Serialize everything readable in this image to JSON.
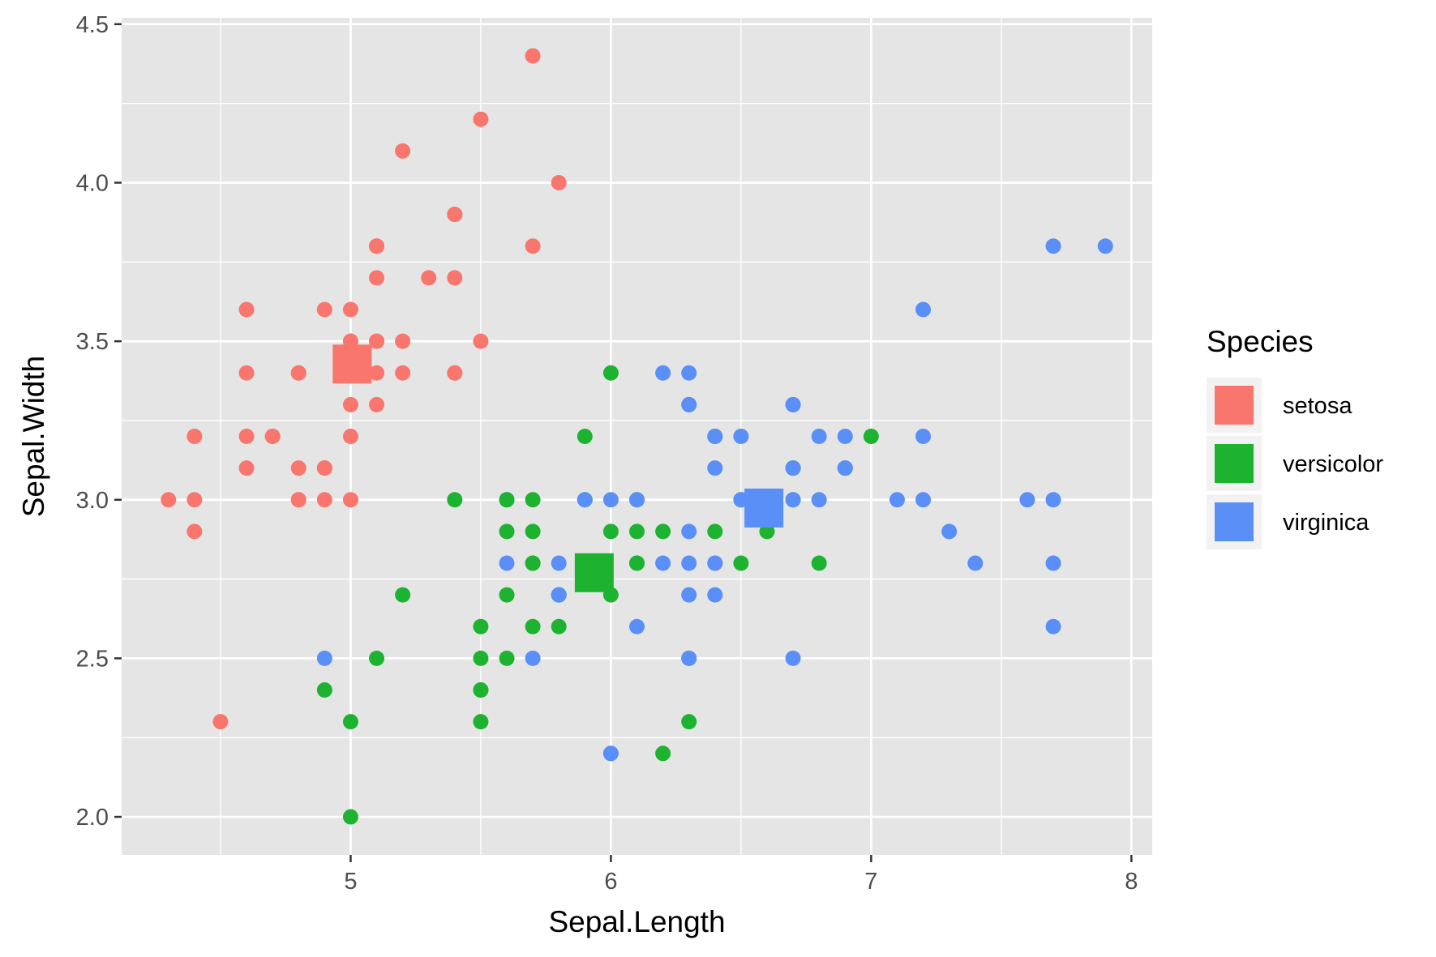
{
  "chart_data": {
    "type": "scatter",
    "xlabel": "Sepal.Length",
    "ylabel": "Sepal.Width",
    "xlim": [
      4.12,
      8.08
    ],
    "ylim": [
      1.88,
      4.52
    ],
    "x_ticks": [
      5,
      6,
      7,
      8
    ],
    "x_tick_labels": [
      "5",
      "6",
      "7",
      "8"
    ],
    "y_ticks": [
      2.0,
      2.5,
      3.0,
      3.5,
      4.0,
      4.5
    ],
    "y_tick_labels": [
      "2.0",
      "2.5",
      "3.0",
      "3.5",
      "4.0",
      "4.5"
    ],
    "grid": true,
    "panel_background": "#e5e5e5",
    "legend": {
      "title": "Species",
      "position": "right",
      "entries": [
        "setosa",
        "versicolor",
        "virginica"
      ]
    },
    "series": [
      {
        "name": "setosa",
        "color": "#f8766d",
        "centroid": [
          5.006,
          3.428
        ],
        "points": [
          [
            5.1,
            3.5
          ],
          [
            4.9,
            3.0
          ],
          [
            4.7,
            3.2
          ],
          [
            4.6,
            3.1
          ],
          [
            5.0,
            3.6
          ],
          [
            5.4,
            3.9
          ],
          [
            4.6,
            3.4
          ],
          [
            5.0,
            3.4
          ],
          [
            4.4,
            2.9
          ],
          [
            4.9,
            3.1
          ],
          [
            5.4,
            3.7
          ],
          [
            4.8,
            3.4
          ],
          [
            4.8,
            3.0
          ],
          [
            4.3,
            3.0
          ],
          [
            5.8,
            4.0
          ],
          [
            5.7,
            4.4
          ],
          [
            5.4,
            3.9
          ],
          [
            5.1,
            3.5
          ],
          [
            5.7,
            3.8
          ],
          [
            5.1,
            3.8
          ],
          [
            5.4,
            3.4
          ],
          [
            5.1,
            3.7
          ],
          [
            4.6,
            3.6
          ],
          [
            5.1,
            3.3
          ],
          [
            4.8,
            3.4
          ],
          [
            5.0,
            3.0
          ],
          [
            5.0,
            3.4
          ],
          [
            5.2,
            3.5
          ],
          [
            5.2,
            3.4
          ],
          [
            4.7,
            3.2
          ],
          [
            4.8,
            3.1
          ],
          [
            5.4,
            3.4
          ],
          [
            5.2,
            4.1
          ],
          [
            5.5,
            4.2
          ],
          [
            4.9,
            3.1
          ],
          [
            5.0,
            3.2
          ],
          [
            5.5,
            3.5
          ],
          [
            4.9,
            3.6
          ],
          [
            4.4,
            3.0
          ],
          [
            5.1,
            3.4
          ],
          [
            5.0,
            3.5
          ],
          [
            4.5,
            2.3
          ],
          [
            4.4,
            3.2
          ],
          [
            5.0,
            3.5
          ],
          [
            5.1,
            3.8
          ],
          [
            4.8,
            3.0
          ],
          [
            5.1,
            3.8
          ],
          [
            4.6,
            3.2
          ],
          [
            5.3,
            3.7
          ],
          [
            5.0,
            3.3
          ]
        ]
      },
      {
        "name": "versicolor",
        "color": "#1db331",
        "centroid": [
          5.936,
          2.77
        ],
        "points": [
          [
            7.0,
            3.2
          ],
          [
            6.4,
            3.2
          ],
          [
            6.9,
            3.1
          ],
          [
            5.5,
            2.3
          ],
          [
            6.5,
            2.8
          ],
          [
            5.7,
            2.8
          ],
          [
            6.3,
            3.3
          ],
          [
            4.9,
            2.4
          ],
          [
            6.6,
            2.9
          ],
          [
            5.2,
            2.7
          ],
          [
            5.0,
            2.0
          ],
          [
            5.9,
            3.0
          ],
          [
            6.0,
            2.2
          ],
          [
            6.1,
            2.9
          ],
          [
            5.6,
            2.9
          ],
          [
            6.7,
            3.1
          ],
          [
            5.6,
            3.0
          ],
          [
            5.8,
            2.7
          ],
          [
            6.2,
            2.2
          ],
          [
            5.6,
            2.5
          ],
          [
            5.9,
            3.2
          ],
          [
            6.1,
            2.8
          ],
          [
            6.3,
            2.5
          ],
          [
            6.1,
            2.8
          ],
          [
            6.4,
            2.9
          ],
          [
            6.6,
            3.0
          ],
          [
            6.8,
            2.8
          ],
          [
            6.7,
            3.0
          ],
          [
            6.0,
            2.9
          ],
          [
            5.7,
            2.6
          ],
          [
            5.5,
            2.4
          ],
          [
            5.5,
            2.4
          ],
          [
            5.8,
            2.7
          ],
          [
            6.0,
            2.7
          ],
          [
            5.4,
            3.0
          ],
          [
            6.0,
            3.4
          ],
          [
            6.7,
            3.1
          ],
          [
            6.3,
            2.3
          ],
          [
            5.6,
            3.0
          ],
          [
            5.5,
            2.5
          ],
          [
            5.5,
            2.6
          ],
          [
            6.1,
            3.0
          ],
          [
            5.8,
            2.6
          ],
          [
            5.0,
            2.3
          ],
          [
            5.6,
            2.7
          ],
          [
            5.7,
            3.0
          ],
          [
            5.7,
            2.9
          ],
          [
            6.2,
            2.9
          ],
          [
            5.1,
            2.5
          ],
          [
            5.7,
            2.8
          ]
        ]
      },
      {
        "name": "virginica",
        "color": "#5a8ff8",
        "centroid": [
          6.588,
          2.974
        ],
        "points": [
          [
            6.3,
            3.3
          ],
          [
            5.8,
            2.7
          ],
          [
            7.1,
            3.0
          ],
          [
            6.3,
            2.9
          ],
          [
            6.5,
            3.0
          ],
          [
            7.6,
            3.0
          ],
          [
            4.9,
            2.5
          ],
          [
            7.3,
            2.9
          ],
          [
            6.7,
            2.5
          ],
          [
            7.2,
            3.6
          ],
          [
            6.5,
            3.2
          ],
          [
            6.4,
            2.7
          ],
          [
            6.8,
            3.0
          ],
          [
            5.7,
            2.5
          ],
          [
            5.8,
            2.8
          ],
          [
            6.4,
            3.2
          ],
          [
            6.5,
            3.0
          ],
          [
            7.7,
            3.8
          ],
          [
            7.7,
            2.6
          ],
          [
            6.0,
            2.2
          ],
          [
            6.9,
            3.2
          ],
          [
            5.6,
            2.8
          ],
          [
            7.7,
            2.8
          ],
          [
            6.3,
            2.7
          ],
          [
            6.7,
            3.3
          ],
          [
            7.2,
            3.2
          ],
          [
            6.2,
            2.8
          ],
          [
            6.1,
            3.0
          ],
          [
            6.4,
            2.8
          ],
          [
            7.2,
            3.0
          ],
          [
            7.4,
            2.8
          ],
          [
            7.9,
            3.8
          ],
          [
            6.4,
            2.8
          ],
          [
            6.3,
            2.8
          ],
          [
            6.1,
            2.6
          ],
          [
            7.7,
            3.0
          ],
          [
            6.3,
            3.4
          ],
          [
            6.4,
            3.1
          ],
          [
            6.0,
            3.0
          ],
          [
            6.9,
            3.1
          ],
          [
            6.7,
            3.1
          ],
          [
            6.9,
            3.1
          ],
          [
            5.8,
            2.7
          ],
          [
            6.8,
            3.2
          ],
          [
            6.7,
            3.3
          ],
          [
            6.7,
            3.0
          ],
          [
            6.3,
            2.5
          ],
          [
            6.5,
            3.0
          ],
          [
            6.2,
            3.4
          ],
          [
            5.9,
            3.0
          ]
        ]
      }
    ]
  }
}
